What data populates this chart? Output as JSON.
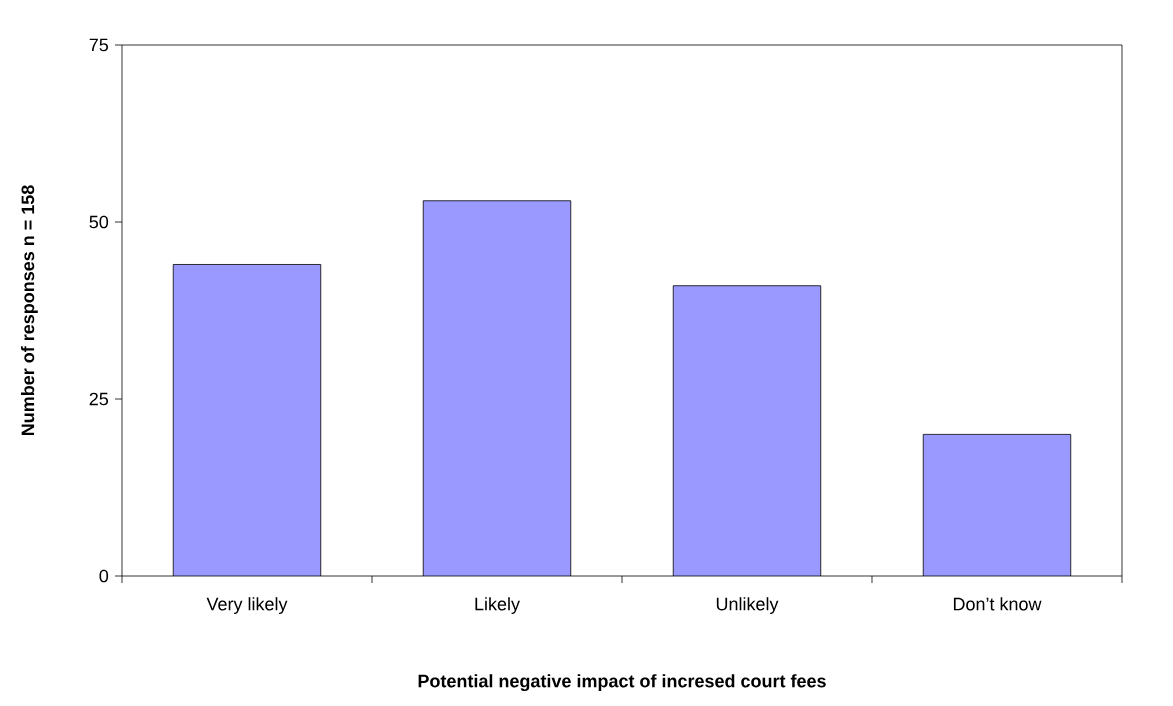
{
  "chart_data": {
    "type": "bar",
    "xlabel": "Potential negative impact of incresed court fees",
    "ylabel": "Number of responses n = 158",
    "categories": [
      "Very likely",
      "Likely",
      "Unlikely",
      "Don’t know"
    ],
    "values": [
      44,
      53,
      41,
      20
    ],
    "color": "#9999ff",
    "ylim": [
      0,
      75
    ],
    "yticks": [
      0,
      25,
      50,
      75
    ]
  }
}
